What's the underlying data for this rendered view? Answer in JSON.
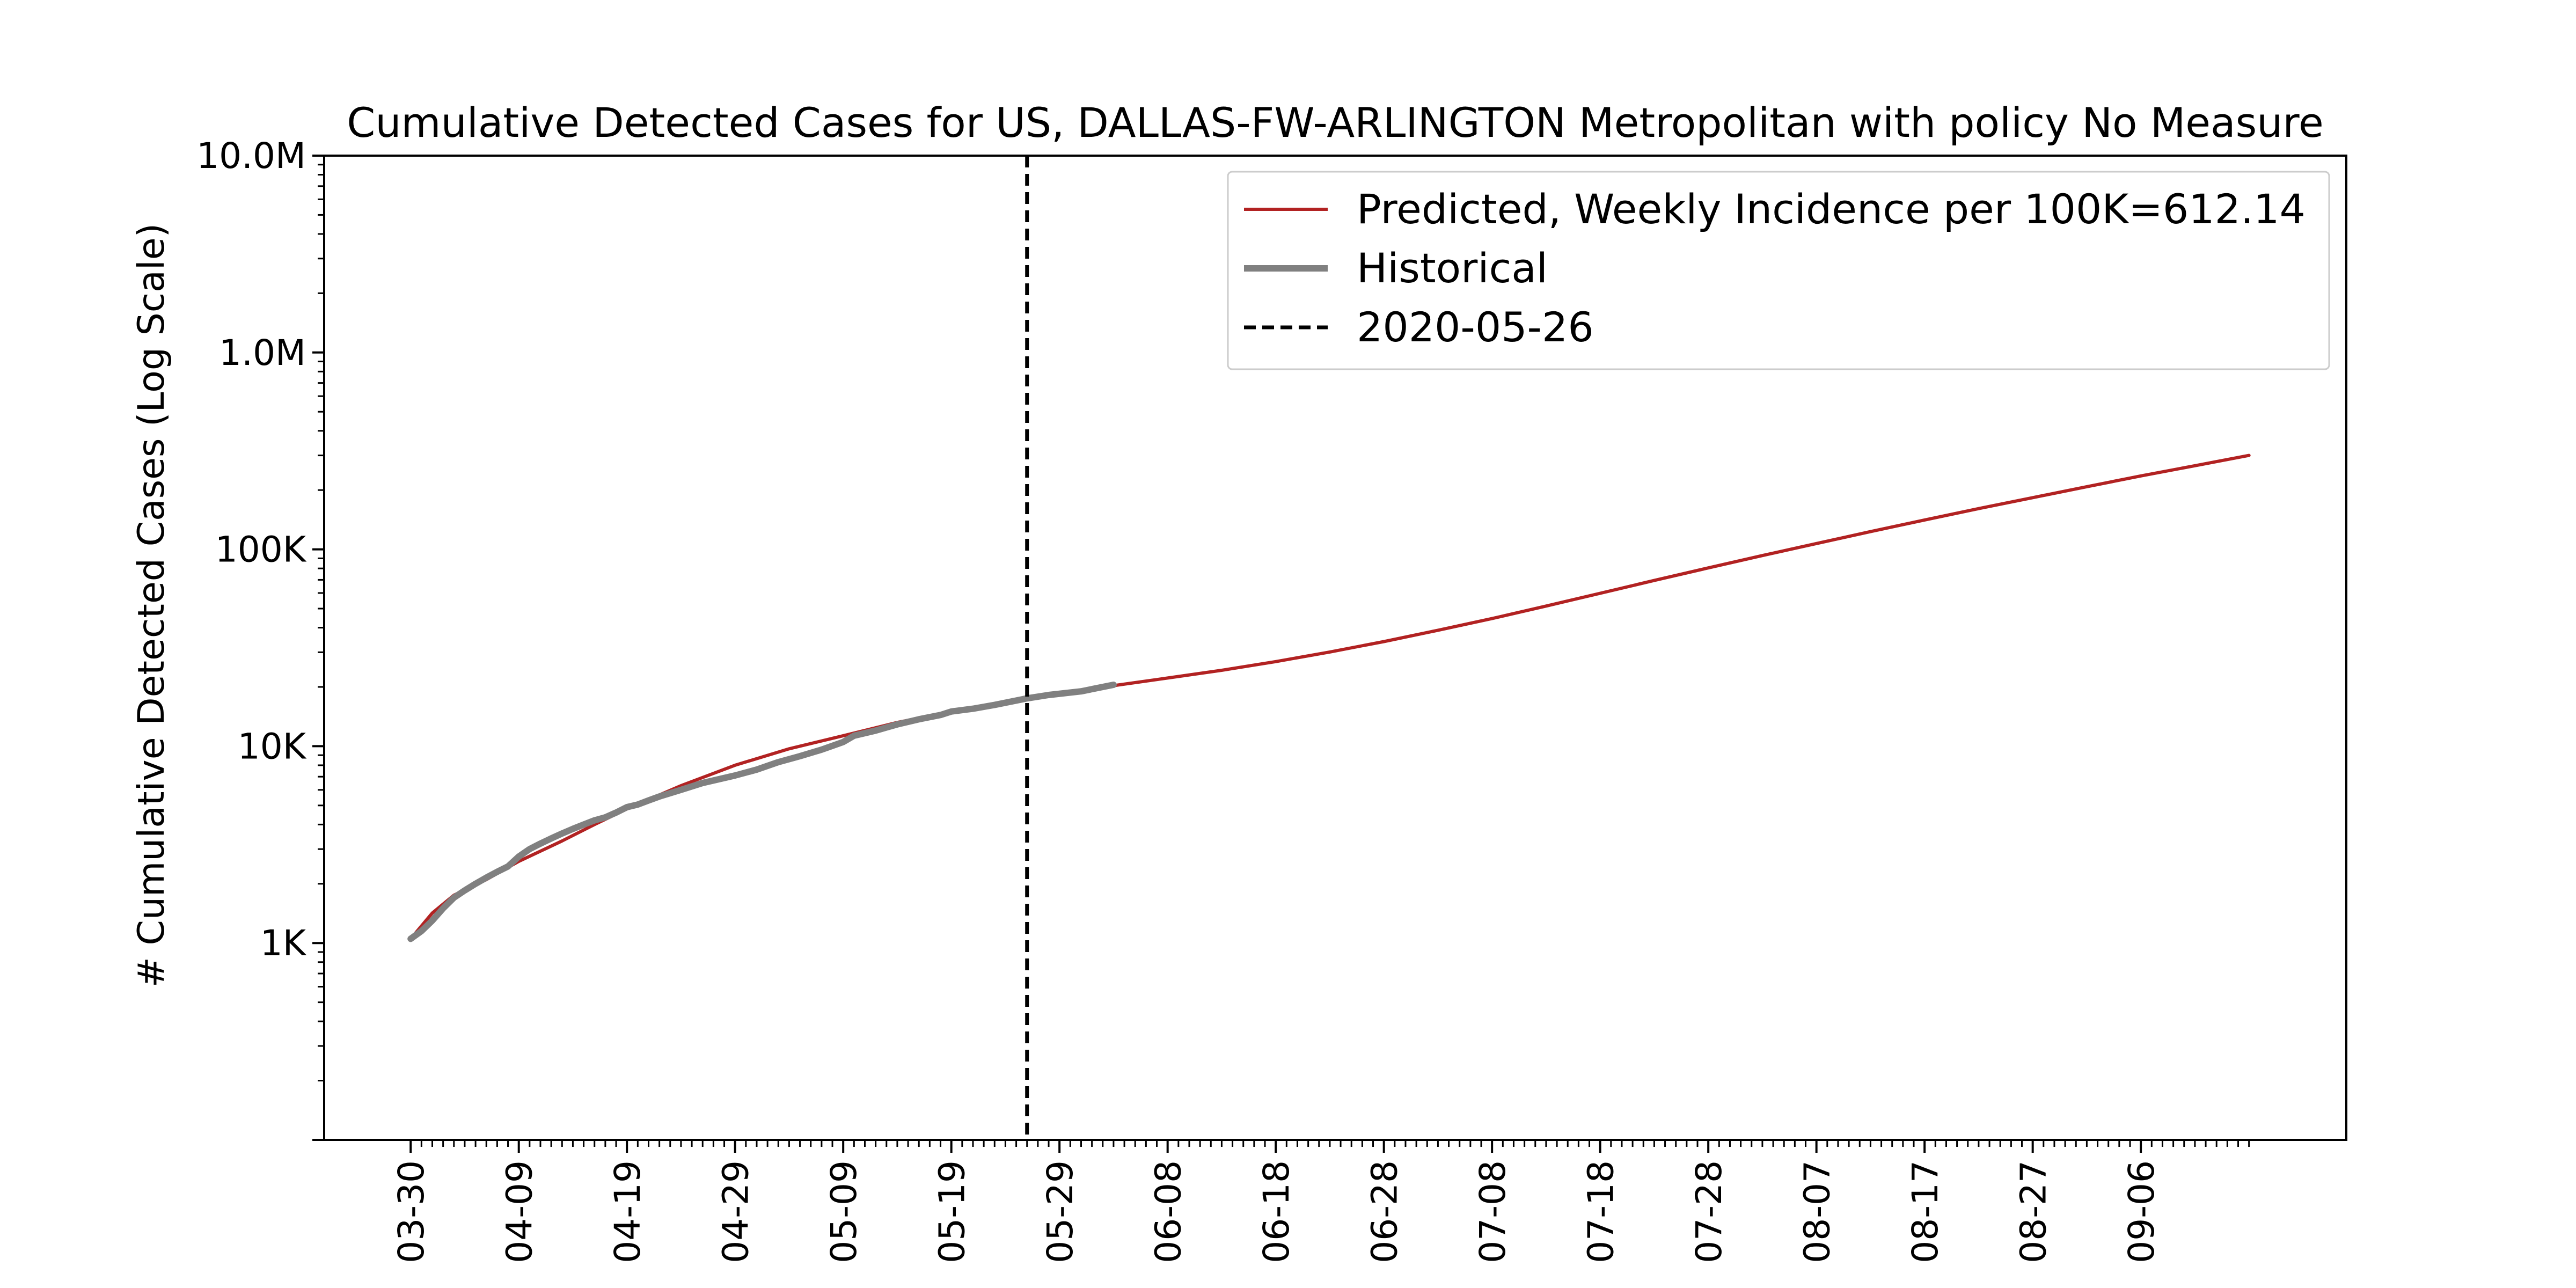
{
  "colors": {
    "predicted": "#b22222",
    "historical": "#808080",
    "marker": "#000000",
    "axes": "#000000",
    "background": "#ffffff"
  },
  "chart_data": {
    "type": "line",
    "title": "Cumulative Detected Cases for US, DALLAS-FW-ARLINGTON Metropolitan with policy No Measure",
    "xlabel": "",
    "ylabel": "# Cumulative Detected Cases (Log Scale)",
    "y_scale": "log",
    "ylim": [
      100,
      10000000
    ],
    "xlim": [
      "2020-03-22",
      "2020-09-25"
    ],
    "y_ticks": [
      {
        "value": 1000,
        "label": "1K"
      },
      {
        "value": 10000,
        "label": "10K"
      },
      {
        "value": 100000,
        "label": "100K"
      },
      {
        "value": 1000000,
        "label": "1.0M"
      },
      {
        "value": 10000000,
        "label": "10.0M"
      }
    ],
    "x_ticks": [
      {
        "date": "2020-03-30",
        "label": "03-30"
      },
      {
        "date": "2020-04-09",
        "label": "04-09"
      },
      {
        "date": "2020-04-19",
        "label": "04-19"
      },
      {
        "date": "2020-04-29",
        "label": "04-29"
      },
      {
        "date": "2020-05-09",
        "label": "05-09"
      },
      {
        "date": "2020-05-19",
        "label": "05-19"
      },
      {
        "date": "2020-05-29",
        "label": "05-29"
      },
      {
        "date": "2020-06-08",
        "label": "06-08"
      },
      {
        "date": "2020-06-18",
        "label": "06-18"
      },
      {
        "date": "2020-06-28",
        "label": "06-28"
      },
      {
        "date": "2020-07-08",
        "label": "07-08"
      },
      {
        "date": "2020-07-18",
        "label": "07-18"
      },
      {
        "date": "2020-07-28",
        "label": "07-28"
      },
      {
        "date": "2020-08-07",
        "label": "08-07"
      },
      {
        "date": "2020-08-17",
        "label": "08-17"
      },
      {
        "date": "2020-08-27",
        "label": "08-27"
      },
      {
        "date": "2020-09-06",
        "label": "09-06"
      }
    ],
    "minor_tick_range": [
      "2020-03-30",
      "2020-09-16"
    ],
    "vline": {
      "date": "2020-05-26",
      "label": "2020-05-26"
    },
    "legend": {
      "position": "top-right"
    },
    "series": [
      {
        "name": "Predicted, Weekly Incidence per 100K=612.14",
        "style": "solid-thin",
        "points": [
          [
            "2020-03-30",
            1050
          ],
          [
            "2020-04-01",
            1420
          ],
          [
            "2020-04-03",
            1750
          ],
          [
            "2020-04-06",
            2100
          ],
          [
            "2020-04-09",
            2600
          ],
          [
            "2020-04-13",
            3300
          ],
          [
            "2020-04-16",
            4000
          ],
          [
            "2020-04-19",
            4800
          ],
          [
            "2020-04-24",
            6300
          ],
          [
            "2020-04-29",
            8000
          ],
          [
            "2020-05-04",
            9700
          ],
          [
            "2020-05-09",
            11300
          ],
          [
            "2020-05-14",
            13200
          ],
          [
            "2020-05-19",
            15000
          ],
          [
            "2020-05-24",
            16800
          ],
          [
            "2020-05-29",
            18500
          ],
          [
            "2020-06-03",
            20300
          ],
          [
            "2020-06-08",
            22200
          ],
          [
            "2020-06-13",
            24300
          ],
          [
            "2020-06-18",
            26900
          ],
          [
            "2020-06-23",
            30100
          ],
          [
            "2020-06-28",
            34000
          ],
          [
            "2020-07-03",
            38800
          ],
          [
            "2020-07-08",
            44500
          ],
          [
            "2020-07-13",
            51500
          ],
          [
            "2020-07-18",
            59800
          ],
          [
            "2020-07-23",
            69500
          ],
          [
            "2020-07-28",
            80500
          ],
          [
            "2020-08-02",
            93000
          ],
          [
            "2020-08-07",
            107000
          ],
          [
            "2020-08-12",
            123000
          ],
          [
            "2020-08-17",
            141000
          ],
          [
            "2020-08-22",
            161000
          ],
          [
            "2020-08-27",
            183000
          ],
          [
            "2020-09-01",
            208000
          ],
          [
            "2020-09-06",
            236000
          ],
          [
            "2020-09-11",
            266000
          ],
          [
            "2020-09-16",
            300000
          ]
        ]
      },
      {
        "name": "Historical",
        "style": "solid-thick",
        "points": [
          [
            "2020-03-30",
            1050
          ],
          [
            "2020-03-31",
            1150
          ],
          [
            "2020-04-01",
            1300
          ],
          [
            "2020-04-02",
            1500
          ],
          [
            "2020-04-03",
            1700
          ],
          [
            "2020-04-04",
            1850
          ],
          [
            "2020-04-05",
            2000
          ],
          [
            "2020-04-06",
            2150
          ],
          [
            "2020-04-07",
            2300
          ],
          [
            "2020-04-08",
            2450
          ],
          [
            "2020-04-09",
            2750
          ],
          [
            "2020-04-10",
            3000
          ],
          [
            "2020-04-11",
            3200
          ],
          [
            "2020-04-12",
            3400
          ],
          [
            "2020-04-13",
            3600
          ],
          [
            "2020-04-14",
            3800
          ],
          [
            "2020-04-15",
            4000
          ],
          [
            "2020-04-16",
            4200
          ],
          [
            "2020-04-17",
            4350
          ],
          [
            "2020-04-18",
            4600
          ],
          [
            "2020-04-19",
            4900
          ],
          [
            "2020-04-20",
            5050
          ],
          [
            "2020-04-21",
            5300
          ],
          [
            "2020-04-22",
            5550
          ],
          [
            "2020-04-24",
            6000
          ],
          [
            "2020-04-26",
            6500
          ],
          [
            "2020-04-29",
            7100
          ],
          [
            "2020-05-01",
            7600
          ],
          [
            "2020-05-03",
            8300
          ],
          [
            "2020-05-05",
            8900
          ],
          [
            "2020-05-07",
            9600
          ],
          [
            "2020-05-09",
            10500
          ],
          [
            "2020-05-10",
            11300
          ],
          [
            "2020-05-12",
            12000
          ],
          [
            "2020-05-14",
            12900
          ],
          [
            "2020-05-16",
            13700
          ],
          [
            "2020-05-18",
            14400
          ],
          [
            "2020-05-19",
            15000
          ],
          [
            "2020-05-21",
            15500
          ],
          [
            "2020-05-23",
            16200
          ],
          [
            "2020-05-26",
            17500
          ],
          [
            "2020-05-28",
            18200
          ],
          [
            "2020-05-31",
            19000
          ],
          [
            "2020-06-03",
            20500
          ]
        ]
      }
    ]
  }
}
